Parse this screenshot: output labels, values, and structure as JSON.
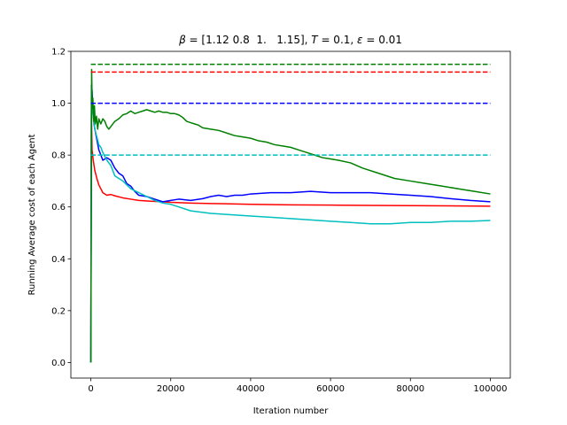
{
  "chart_data": {
    "type": "line",
    "title": "β = [1.12 0.8  1.   1.15], T = 0.1, ε = 0.01",
    "title_parts": {
      "beta_symbol": "β",
      "beta_rest": " = [1.12 0.8  1.   1.15], ",
      "t_symbol": "T",
      "t_rest": " = 0.1, ",
      "eps_symbol": "ε",
      "eps_rest": " = 0.01"
    },
    "xlabel": "Iteration number",
    "ylabel": "Running Average cost of each Agent",
    "xlim": [
      -5000,
      105000
    ],
    "ylim": [
      -0.06,
      1.2
    ],
    "xticks": [
      0,
      20000,
      40000,
      60000,
      80000,
      100000
    ],
    "xtick_labels": [
      "0",
      "20000",
      "40000",
      "60000",
      "80000",
      "100000"
    ],
    "yticks": [
      0.0,
      0.2,
      0.4,
      0.6,
      0.8,
      1.0,
      1.2
    ],
    "ytick_labels": [
      "0.0",
      "0.2",
      "0.4",
      "0.6",
      "0.8",
      "1.0",
      "1.2"
    ],
    "grid": false,
    "legend": false,
    "series": [
      {
        "color": "#ff0000",
        "points": [
          [
            0,
            0.0
          ],
          [
            60,
            0.55
          ],
          [
            150,
            0.96
          ],
          [
            300,
            0.82
          ],
          [
            600,
            0.78
          ],
          [
            1000,
            0.74
          ],
          [
            1500,
            0.71
          ],
          [
            2000,
            0.685
          ],
          [
            2500,
            0.67
          ],
          [
            3000,
            0.655
          ],
          [
            4000,
            0.645
          ],
          [
            5000,
            0.648
          ],
          [
            6000,
            0.643
          ],
          [
            8000,
            0.635
          ],
          [
            10000,
            0.63
          ],
          [
            12000,
            0.625
          ],
          [
            15000,
            0.622
          ],
          [
            18000,
            0.62
          ],
          [
            20000,
            0.618
          ],
          [
            25000,
            0.615
          ],
          [
            30000,
            0.613
          ],
          [
            35000,
            0.612
          ],
          [
            40000,
            0.61
          ],
          [
            50000,
            0.608
          ],
          [
            60000,
            0.607
          ],
          [
            70000,
            0.606
          ],
          [
            80000,
            0.605
          ],
          [
            90000,
            0.604
          ],
          [
            100000,
            0.603
          ]
        ]
      },
      {
        "color": "#0000ff",
        "points": [
          [
            0,
            0.0
          ],
          [
            60,
            0.4
          ],
          [
            150,
            1.07
          ],
          [
            300,
            1.05
          ],
          [
            500,
            0.98
          ],
          [
            800,
            0.92
          ],
          [
            1000,
            0.9
          ],
          [
            1500,
            0.86
          ],
          [
            2000,
            0.82
          ],
          [
            2500,
            0.8
          ],
          [
            3000,
            0.78
          ],
          [
            4000,
            0.79
          ],
          [
            5000,
            0.78
          ],
          [
            6000,
            0.75
          ],
          [
            7000,
            0.73
          ],
          [
            8000,
            0.72
          ],
          [
            9000,
            0.69
          ],
          [
            10000,
            0.68
          ],
          [
            11000,
            0.66
          ],
          [
            12000,
            0.645
          ],
          [
            14000,
            0.64
          ],
          [
            16000,
            0.63
          ],
          [
            18000,
            0.62
          ],
          [
            20000,
            0.625
          ],
          [
            22000,
            0.63
          ],
          [
            25000,
            0.625
          ],
          [
            28000,
            0.632
          ],
          [
            30000,
            0.64
          ],
          [
            32000,
            0.645
          ],
          [
            34000,
            0.64
          ],
          [
            36000,
            0.645
          ],
          [
            38000,
            0.645
          ],
          [
            40000,
            0.65
          ],
          [
            45000,
            0.655
          ],
          [
            50000,
            0.655
          ],
          [
            55000,
            0.66
          ],
          [
            60000,
            0.655
          ],
          [
            65000,
            0.655
          ],
          [
            70000,
            0.655
          ],
          [
            75000,
            0.65
          ],
          [
            80000,
            0.645
          ],
          [
            85000,
            0.64
          ],
          [
            90000,
            0.632
          ],
          [
            95000,
            0.625
          ],
          [
            100000,
            0.62
          ]
        ]
      },
      {
        "color": "#00bfbf",
        "points": [
          [
            0,
            0.0
          ],
          [
            60,
            0.45
          ],
          [
            150,
            1.06
          ],
          [
            300,
            1.0
          ],
          [
            500,
            0.96
          ],
          [
            800,
            0.93
          ],
          [
            1000,
            0.9
          ],
          [
            1500,
            0.87
          ],
          [
            2000,
            0.84
          ],
          [
            2500,
            0.83
          ],
          [
            3000,
            0.81
          ],
          [
            4000,
            0.78
          ],
          [
            5000,
            0.76
          ],
          [
            6000,
            0.72
          ],
          [
            8000,
            0.7
          ],
          [
            10000,
            0.67
          ],
          [
            12000,
            0.655
          ],
          [
            14000,
            0.64
          ],
          [
            16000,
            0.625
          ],
          [
            18000,
            0.615
          ],
          [
            20000,
            0.61
          ],
          [
            22000,
            0.6
          ],
          [
            25000,
            0.585
          ],
          [
            30000,
            0.575
          ],
          [
            35000,
            0.57
          ],
          [
            40000,
            0.565
          ],
          [
            45000,
            0.56
          ],
          [
            50000,
            0.555
          ],
          [
            55000,
            0.55
          ],
          [
            60000,
            0.545
          ],
          [
            65000,
            0.54
          ],
          [
            70000,
            0.535
          ],
          [
            75000,
            0.535
          ],
          [
            80000,
            0.54
          ],
          [
            85000,
            0.54
          ],
          [
            90000,
            0.545
          ],
          [
            95000,
            0.545
          ],
          [
            100000,
            0.548
          ]
        ]
      },
      {
        "color": "#008000",
        "points": [
          [
            0,
            0.0
          ],
          [
            80,
            0.5
          ],
          [
            200,
            1.13
          ],
          [
            350,
            0.98
          ],
          [
            500,
            1.02
          ],
          [
            700,
            0.93
          ],
          [
            900,
            0.99
          ],
          [
            1100,
            0.92
          ],
          [
            1400,
            0.95
          ],
          [
            1700,
            0.9
          ],
          [
            2000,
            0.94
          ],
          [
            2500,
            0.92
          ],
          [
            3000,
            0.94
          ],
          [
            3500,
            0.93
          ],
          [
            4000,
            0.91
          ],
          [
            4500,
            0.9
          ],
          [
            5000,
            0.91
          ],
          [
            6000,
            0.93
          ],
          [
            7000,
            0.94
          ],
          [
            8000,
            0.955
          ],
          [
            9000,
            0.96
          ],
          [
            10000,
            0.97
          ],
          [
            11000,
            0.96
          ],
          [
            12000,
            0.965
          ],
          [
            13000,
            0.97
          ],
          [
            14000,
            0.975
          ],
          [
            15000,
            0.97
          ],
          [
            16000,
            0.965
          ],
          [
            17000,
            0.97
          ],
          [
            18000,
            0.965
          ],
          [
            19000,
            0.965
          ],
          [
            20000,
            0.96
          ],
          [
            21000,
            0.96
          ],
          [
            22000,
            0.955
          ],
          [
            23000,
            0.945
          ],
          [
            24000,
            0.93
          ],
          [
            25000,
            0.925
          ],
          [
            26000,
            0.92
          ],
          [
            27000,
            0.915
          ],
          [
            28000,
            0.905
          ],
          [
            30000,
            0.9
          ],
          [
            32000,
            0.895
          ],
          [
            34000,
            0.885
          ],
          [
            36000,
            0.875
          ],
          [
            38000,
            0.87
          ],
          [
            40000,
            0.865
          ],
          [
            42000,
            0.855
          ],
          [
            44000,
            0.85
          ],
          [
            46000,
            0.84
          ],
          [
            48000,
            0.835
          ],
          [
            50000,
            0.83
          ],
          [
            52000,
            0.82
          ],
          [
            54000,
            0.81
          ],
          [
            56000,
            0.8
          ],
          [
            58000,
            0.79
          ],
          [
            60000,
            0.785
          ],
          [
            62000,
            0.78
          ],
          [
            65000,
            0.77
          ],
          [
            68000,
            0.75
          ],
          [
            72000,
            0.73
          ],
          [
            76000,
            0.71
          ],
          [
            80000,
            0.7
          ],
          [
            84000,
            0.69
          ],
          [
            88000,
            0.68
          ],
          [
            92000,
            0.67
          ],
          [
            96000,
            0.66
          ],
          [
            100000,
            0.65
          ]
        ]
      }
    ],
    "reference_lines": [
      {
        "y": 1.15,
        "color": "#008000",
        "style": "dashed"
      },
      {
        "y": 1.12,
        "color": "#ff0000",
        "style": "dashed"
      },
      {
        "y": 1.0,
        "color": "#0000ff",
        "style": "dashed"
      },
      {
        "y": 0.8,
        "color": "#00bfbf",
        "style": "dashed"
      }
    ]
  }
}
